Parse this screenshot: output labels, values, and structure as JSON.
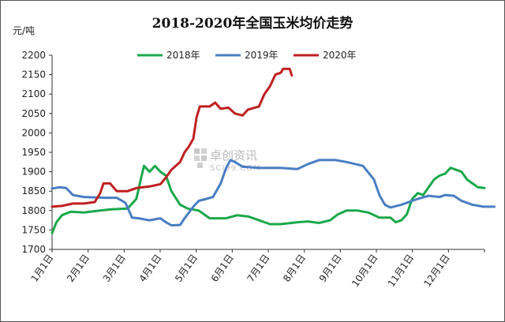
{
  "chart_data": {
    "type": "line",
    "title": "2018-2020年全国玉米均价走势",
    "ylabel": "元/吨",
    "xlabel": "",
    "ylim": [
      1700,
      2200
    ],
    "yticks": [
      1700,
      1750,
      1800,
      1850,
      1900,
      1950,
      2000,
      2050,
      2100,
      2150,
      2200
    ],
    "xticks": [
      "1月1日",
      "2月1日",
      "3月1日",
      "4月1日",
      "5月1日",
      "6月1日",
      "7月1日",
      "8月1日",
      "9月1日",
      "10月1日",
      "11月1日",
      "12月1日"
    ],
    "legend_position": "top",
    "grid": false,
    "series": [
      {
        "name": "2018年",
        "color": "#1aa84a",
        "points": [
          [
            1,
            1742
          ],
          [
            5,
            1770
          ],
          [
            10,
            1788
          ],
          [
            18,
            1797
          ],
          [
            30,
            1795
          ],
          [
            45,
            1800
          ],
          [
            55,
            1803
          ],
          [
            70,
            1805
          ],
          [
            78,
            1830
          ],
          [
            82,
            1880
          ],
          [
            85,
            1915
          ],
          [
            90,
            1900
          ],
          [
            95,
            1915
          ],
          [
            100,
            1900
          ],
          [
            105,
            1890
          ],
          [
            110,
            1850
          ],
          [
            118,
            1815
          ],
          [
            125,
            1805
          ],
          [
            135,
            1800
          ],
          [
            145,
            1780
          ],
          [
            160,
            1780
          ],
          [
            170,
            1788
          ],
          [
            180,
            1785
          ],
          [
            190,
            1775
          ],
          [
            200,
            1765
          ],
          [
            210,
            1765
          ],
          [
            225,
            1770
          ],
          [
            235,
            1772
          ],
          [
            245,
            1768
          ],
          [
            255,
            1775
          ],
          [
            262,
            1790
          ],
          [
            270,
            1800
          ],
          [
            280,
            1800
          ],
          [
            290,
            1795
          ],
          [
            300,
            1782
          ],
          [
            310,
            1782
          ],
          [
            315,
            1770
          ],
          [
            320,
            1775
          ],
          [
            325,
            1790
          ],
          [
            330,
            1830
          ],
          [
            335,
            1845
          ],
          [
            340,
            1840
          ],
          [
            345,
            1860
          ],
          [
            350,
            1880
          ],
          [
            355,
            1890
          ],
          [
            360,
            1895
          ],
          [
            365,
            1910
          ],
          [
            370,
            1905
          ],
          [
            375,
            1900
          ],
          [
            380,
            1880
          ],
          [
            385,
            1870
          ],
          [
            390,
            1860
          ],
          [
            396,
            1858
          ]
        ]
      },
      {
        "name": "2019年",
        "color": "#4a7ec3",
        "points": [
          [
            1,
            1857
          ],
          [
            8,
            1860
          ],
          [
            14,
            1858
          ],
          [
            20,
            1840
          ],
          [
            30,
            1835
          ],
          [
            50,
            1833
          ],
          [
            60,
            1833
          ],
          [
            68,
            1820
          ],
          [
            74,
            1782
          ],
          [
            80,
            1780
          ],
          [
            90,
            1775
          ],
          [
            100,
            1780
          ],
          [
            105,
            1770
          ],
          [
            110,
            1762
          ],
          [
            118,
            1763
          ],
          [
            122,
            1780
          ],
          [
            130,
            1810
          ],
          [
            135,
            1825
          ],
          [
            142,
            1830
          ],
          [
            148,
            1835
          ],
          [
            155,
            1870
          ],
          [
            160,
            1910
          ],
          [
            164,
            1930
          ],
          [
            168,
            1925
          ],
          [
            175,
            1913
          ],
          [
            190,
            1910
          ],
          [
            210,
            1910
          ],
          [
            225,
            1907
          ],
          [
            235,
            1920
          ],
          [
            245,
            1930
          ],
          [
            260,
            1930
          ],
          [
            270,
            1925
          ],
          [
            285,
            1915
          ],
          [
            295,
            1880
          ],
          [
            300,
            1840
          ],
          [
            305,
            1815
          ],
          [
            310,
            1808
          ],
          [
            320,
            1815
          ],
          [
            335,
            1830
          ],
          [
            345,
            1838
          ],
          [
            355,
            1835
          ],
          [
            360,
            1840
          ],
          [
            368,
            1838
          ],
          [
            375,
            1825
          ],
          [
            385,
            1815
          ],
          [
            395,
            1810
          ],
          [
            405,
            1810
          ]
        ]
      },
      {
        "name": "2020年",
        "color": "#c02020",
        "points": [
          [
            1,
            1810
          ],
          [
            10,
            1812
          ],
          [
            20,
            1818
          ],
          [
            30,
            1818
          ],
          [
            40,
            1822
          ],
          [
            45,
            1845
          ],
          [
            48,
            1870
          ],
          [
            54,
            1870
          ],
          [
            60,
            1850
          ],
          [
            70,
            1850
          ],
          [
            78,
            1858
          ],
          [
            90,
            1862
          ],
          [
            100,
            1868
          ],
          [
            105,
            1885
          ],
          [
            110,
            1905
          ],
          [
            118,
            1925
          ],
          [
            122,
            1950
          ],
          [
            126,
            1965
          ],
          [
            130,
            1985
          ],
          [
            133,
            2040
          ],
          [
            136,
            2068
          ],
          [
            145,
            2068
          ],
          [
            150,
            2078
          ],
          [
            155,
            2062
          ],
          [
            162,
            2065
          ],
          [
            168,
            2050
          ],
          [
            175,
            2045
          ],
          [
            180,
            2060
          ],
          [
            186,
            2065
          ],
          [
            190,
            2068
          ],
          [
            195,
            2100
          ],
          [
            200,
            2120
          ],
          [
            205,
            2150
          ],
          [
            210,
            2155
          ],
          [
            212,
            2165
          ],
          [
            218,
            2165
          ],
          [
            220,
            2148
          ]
        ]
      }
    ]
  },
  "watermark": {
    "text": "卓创资讯",
    "sub": "SCI99.COM"
  }
}
